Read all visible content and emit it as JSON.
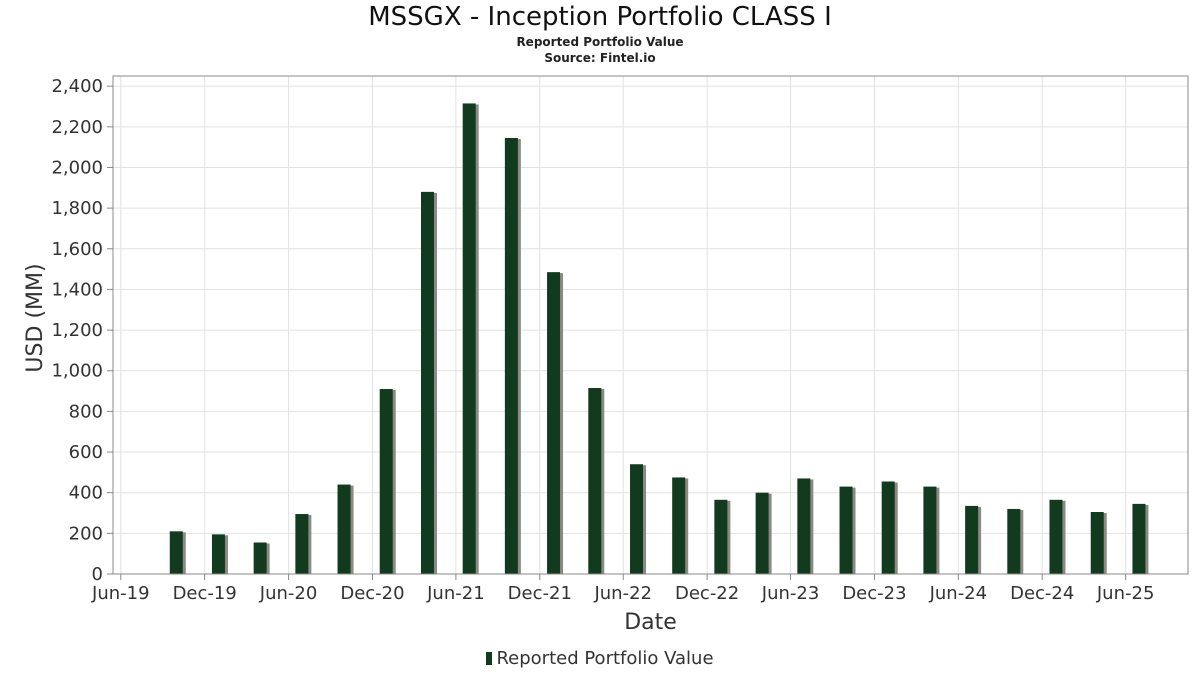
{
  "header": {
    "title": "MSSGX - Inception Portfolio CLASS I",
    "subtitle": "Reported Portfolio Value",
    "source": "Source: Fintel.io"
  },
  "legend": {
    "label": "Reported Portfolio Value"
  },
  "colors": {
    "bar": "#123a1f",
    "bar_shadow": "#8a8a80",
    "grid": "#e2e2e2",
    "axis": "#888888"
  },
  "chart_data": {
    "type": "bar",
    "title": "MSSGX - Inception Portfolio CLASS I",
    "subtitle": "Reported Portfolio Value",
    "xlabel": "Date",
    "ylabel": "USD (MM)",
    "ylim": [
      0,
      2450
    ],
    "xlim": [
      "2019-05-15",
      "2025-10-15"
    ],
    "y_ticks": [
      0,
      200,
      400,
      600,
      800,
      1000,
      1200,
      1400,
      1600,
      1800,
      2000,
      2200,
      2400
    ],
    "y_tick_labels": [
      "0",
      "200",
      "400",
      "600",
      "800",
      "1,000",
      "1,200",
      "1,400",
      "1,600",
      "1,800",
      "2,000",
      "2,200",
      "2,400"
    ],
    "x_ticks": [
      "2019-06-01",
      "2019-12-01",
      "2020-06-01",
      "2020-12-01",
      "2021-06-01",
      "2021-12-01",
      "2022-06-01",
      "2022-12-01",
      "2023-06-01",
      "2023-12-01",
      "2024-06-01",
      "2024-12-01",
      "2025-06-01"
    ],
    "x_tick_labels": [
      "Jun-19",
      "Dec-19",
      "Jun-20",
      "Dec-20",
      "Jun-21",
      "Dec-21",
      "Jun-22",
      "Dec-22",
      "Jun-23",
      "Dec-23",
      "Jun-24",
      "Dec-24",
      "Jun-25"
    ],
    "grid": true,
    "legend_position": "bottom",
    "series": [
      {
        "name": "Reported Portfolio Value",
        "x": [
          "2019-09-30",
          "2019-12-31",
          "2020-03-31",
          "2020-06-30",
          "2020-09-30",
          "2020-12-31",
          "2021-03-31",
          "2021-06-30",
          "2021-09-30",
          "2021-12-31",
          "2022-03-31",
          "2022-06-30",
          "2022-09-30",
          "2022-12-31",
          "2023-03-31",
          "2023-06-30",
          "2023-09-30",
          "2023-12-31",
          "2024-03-31",
          "2024-06-30",
          "2024-09-30",
          "2024-12-31",
          "2025-03-31",
          "2025-06-30"
        ],
        "values": [
          210,
          195,
          155,
          295,
          440,
          910,
          1880,
          2315,
          2145,
          1485,
          915,
          540,
          475,
          365,
          400,
          470,
          430,
          455,
          430,
          335,
          320,
          365,
          305,
          345
        ]
      }
    ]
  }
}
